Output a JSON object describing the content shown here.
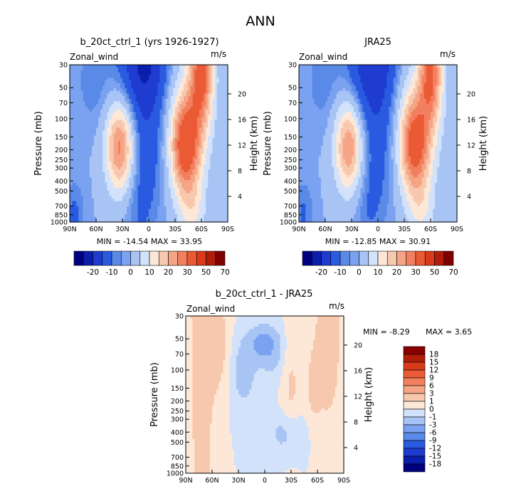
{
  "figure_title": "ANN",
  "panels": [
    {
      "id": "model",
      "title": "b_20ct_ctrl_1 (yrs 1926-1927)",
      "variable": "Zonal_wind",
      "units": "m/s",
      "stats_text": "MIN = -14.54   MAX = 33.95"
    },
    {
      "id": "obs",
      "title": "JRA25",
      "variable": "Zonal_wind",
      "units": "m/s",
      "stats_text": "MIN = -12.85   MAX = 30.91"
    },
    {
      "id": "diff",
      "title": "b_20ct_ctrl_1 - JRA25",
      "variable": "Zonal_wind",
      "units": "m/s",
      "stats_min": "MIN =   -8.29",
      "stats_max": "MAX =    3.65"
    }
  ],
  "axes": {
    "ylabel_left": "Pressure (mb)",
    "ylabel_right": "Height (km)",
    "pressure_ticks": [
      "30",
      "50",
      "70",
      "100",
      "150",
      "200",
      "250",
      "300",
      "400",
      "500",
      "700",
      "850",
      "1000"
    ],
    "height_ticks": [
      "20",
      "16",
      "12",
      "8",
      "4"
    ],
    "lat_ticks": [
      "90N",
      "60N",
      "30N",
      "0",
      "30S",
      "60S",
      "90S"
    ]
  },
  "colorbar_full": {
    "labels": [
      "-20",
      "-10",
      "0",
      "10",
      "20",
      "30",
      "50",
      "70"
    ],
    "colors": [
      "#00007f",
      "#0a1eab",
      "#1e3ccf",
      "#2a5ae0",
      "#5a8ae8",
      "#7aa2f0",
      "#a8c4f5",
      "#d2e2fa",
      "#fde8d8",
      "#f8c8ae",
      "#f5a585",
      "#f28060",
      "#ea5a35",
      "#d83a1a",
      "#b01e0a",
      "#7f0000"
    ]
  },
  "colorbar_diff": {
    "labels": [
      "18",
      "15",
      "12",
      "9",
      "6",
      "3",
      "1",
      "0",
      "-1",
      "-3",
      "-6",
      "-9",
      "-12",
      "-15",
      "-18"
    ],
    "colors": [
      "#8b0000",
      "#b01e0a",
      "#d83a1a",
      "#ea5a35",
      "#f28060",
      "#f5a585",
      "#f8c8ae",
      "#fde8d8",
      "#d2e2fa",
      "#a8c4f5",
      "#7aa2f0",
      "#5a8ae8",
      "#2a5ae0",
      "#1e3ccf",
      "#0a1eab",
      "#00007f"
    ]
  },
  "chart_data": {
    "type": "heatmap",
    "title": "ANN",
    "xlabel": "",
    "ylabel": "Pressure (mb)",
    "ylabel_right": "Height (km)",
    "x_ticks": [
      "90N",
      "60N",
      "30N",
      "0",
      "30S",
      "60S",
      "90S"
    ],
    "y_ticks": [
      30,
      50,
      70,
      100,
      150,
      200,
      250,
      300,
      400,
      500,
      700,
      850,
      1000
    ],
    "y_scale": "log-pressure",
    "panels": [
      {
        "name": "b_20ct_ctrl_1 (yrs 1926-1927)",
        "min": -14.54,
        "max": 33.95
      },
      {
        "name": "JRA25",
        "min": -12.85,
        "max": 30.91
      },
      {
        "name": "b_20ct_ctrl_1 - JRA25",
        "min": -8.29,
        "max": 3.65
      }
    ],
    "contour_levels_full": [
      -20,
      -10,
      0,
      10,
      20,
      30,
      50,
      70
    ],
    "contour_levels_diff": [
      -18,
      -15,
      -12,
      -9,
      -6,
      -3,
      -1,
      0,
      1,
      3,
      6,
      9,
      12,
      15,
      18
    ]
  }
}
